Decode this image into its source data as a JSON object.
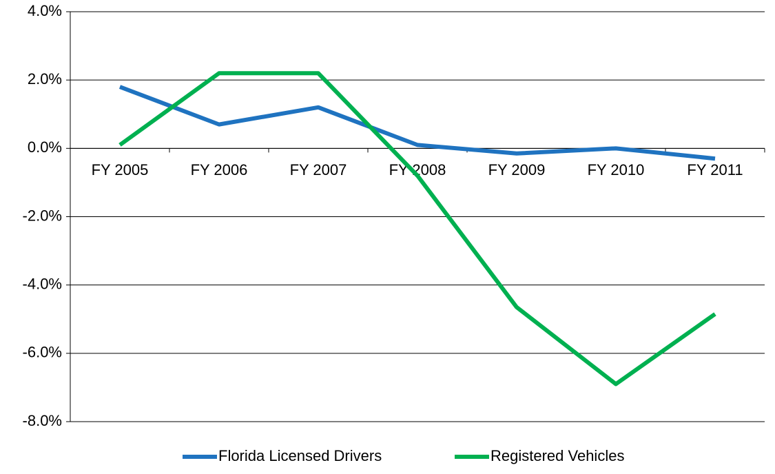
{
  "chart_data": {
    "type": "line",
    "categories": [
      "FY 2005",
      "FY 2006",
      "FY 2007",
      "FY 2008",
      "FY 2009",
      "FY 2010",
      "FY 2011"
    ],
    "series": [
      {
        "name": "Florida Licensed Drivers",
        "color": "#1f73c0",
        "values": [
          1.8,
          0.7,
          1.2,
          0.1,
          -0.15,
          0.0,
          -0.3
        ]
      },
      {
        "name": "Registered Vehicles",
        "color": "#00b050",
        "values": [
          0.1,
          2.2,
          2.2,
          -0.8,
          -4.65,
          -6.9,
          -4.85
        ]
      }
    ],
    "ylim": [
      -8,
      4
    ],
    "yticks": [
      {
        "value": -8,
        "label": "-8.0%"
      },
      {
        "value": -6,
        "label": "-6.0%"
      },
      {
        "value": -4,
        "label": "-4.0%"
      },
      {
        "value": -2,
        "label": "-2.0%"
      },
      {
        "value": 0,
        "label": "0.0%"
      },
      {
        "value": 2,
        "label": "2.0%"
      },
      {
        "value": 4,
        "label": "4.0%"
      }
    ],
    "grid": true,
    "legend": "bottom"
  }
}
